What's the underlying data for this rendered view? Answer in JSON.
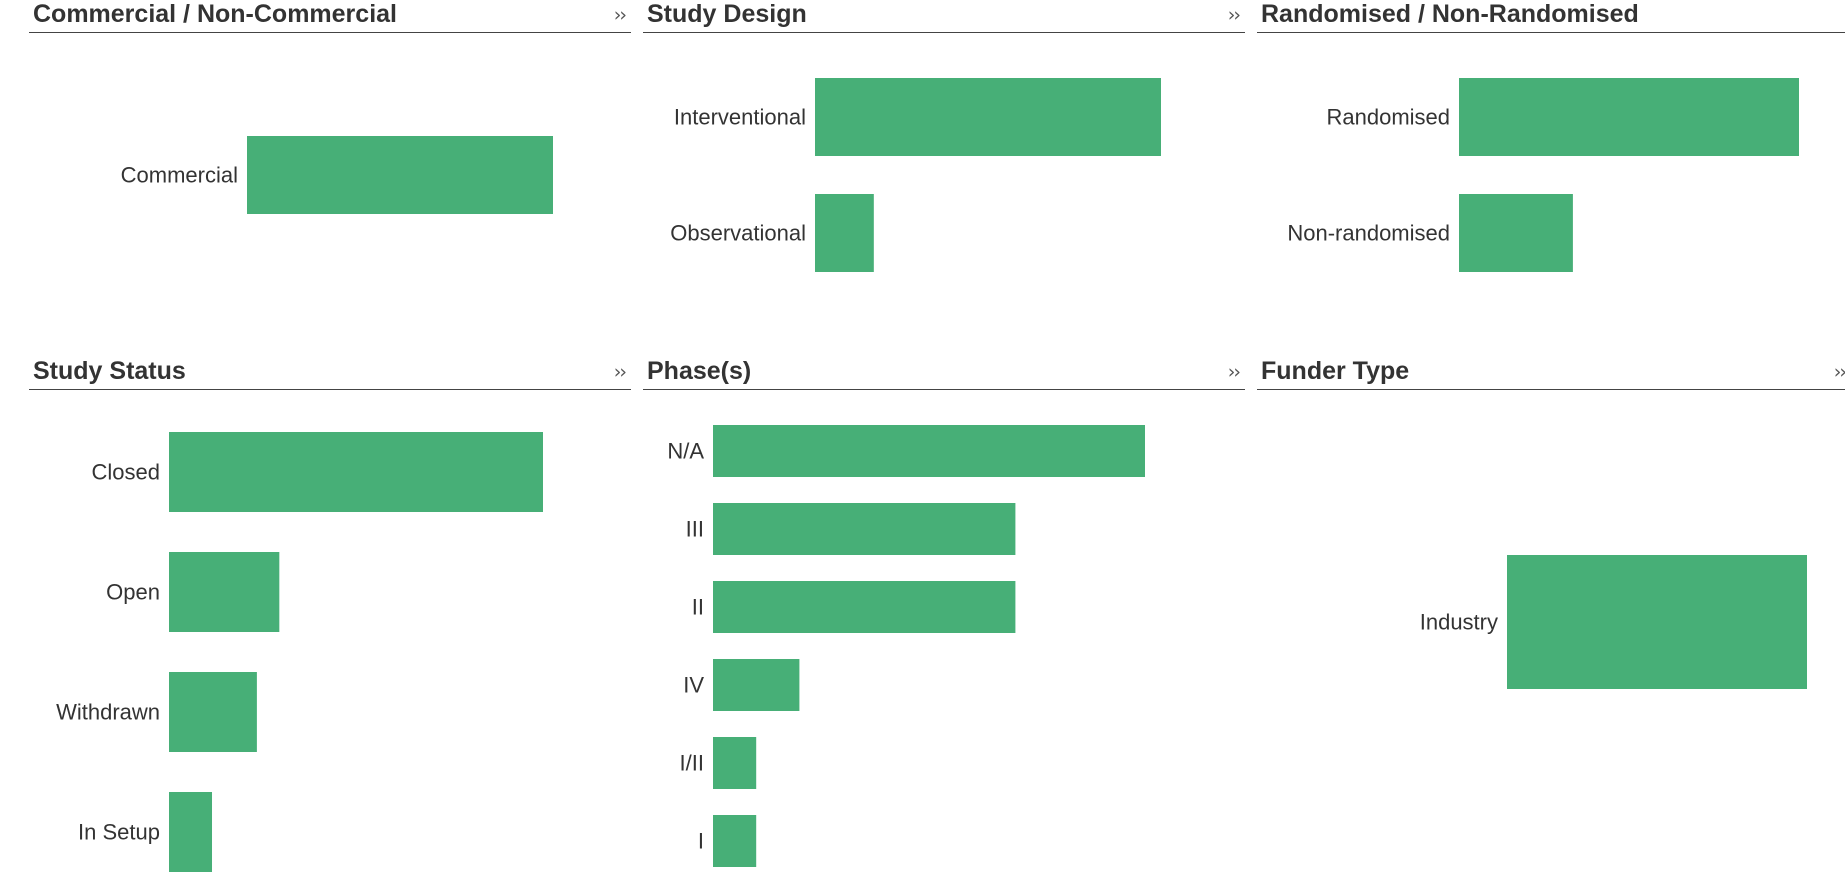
{
  "colors": {
    "bar": "#47af77",
    "title": "#333333",
    "rule": "#444444"
  },
  "icons": {
    "expand": "chevrons-right-icon"
  },
  "panels": [
    {
      "id": "commercial",
      "title": "Commercial / Non-Commercial",
      "expand_label": "››",
      "has_expand": true
    },
    {
      "id": "design",
      "title": "Study Design",
      "expand_label": "››",
      "has_expand": true
    },
    {
      "id": "randomised",
      "title": "Randomised / Non-Randomised",
      "expand_label": "››",
      "has_expand": false
    },
    {
      "id": "status",
      "title": "Study Status",
      "expand_label": "››",
      "has_expand": true
    },
    {
      "id": "phase",
      "title": "Phase(s)",
      "expand_label": "››",
      "has_expand": true
    },
    {
      "id": "funder",
      "title": "Funder Type",
      "expand_label": "››",
      "has_expand": true
    }
  ],
  "chart_data": [
    {
      "type": "bar",
      "orientation": "horizontal",
      "title": "Commercial / Non-Commercial",
      "categories": [
        "Commercial"
      ],
      "values": [
        1
      ],
      "xlim": [
        0,
        1
      ]
    },
    {
      "type": "bar",
      "orientation": "horizontal",
      "title": "Study Design",
      "categories": [
        "Interventional",
        "Observational"
      ],
      "values": [
        1,
        0.17
      ],
      "xlim": [
        0,
        1
      ]
    },
    {
      "type": "bar",
      "orientation": "horizontal",
      "title": "Randomised / Non-Randomised",
      "categories": [
        "Randomised",
        "Non-randomised"
      ],
      "values": [
        1,
        0.335
      ],
      "xlim": [
        0,
        1
      ]
    },
    {
      "type": "bar",
      "orientation": "horizontal",
      "title": "Study Status",
      "categories": [
        "Closed",
        "Open",
        "Withdrawn",
        "In Setup"
      ],
      "values": [
        1,
        0.295,
        0.235,
        0.115
      ],
      "xlim": [
        0,
        1
      ]
    },
    {
      "type": "bar",
      "orientation": "horizontal",
      "title": "Phase(s)",
      "categories": [
        "N/A",
        "III",
        "II",
        "IV",
        "I/II",
        "I"
      ],
      "values": [
        1,
        0.7,
        0.7,
        0.2,
        0.1,
        0.1
      ],
      "xlim": [
        0,
        1
      ]
    },
    {
      "type": "bar",
      "orientation": "horizontal",
      "title": "Funder Type",
      "categories": [
        "Industry"
      ],
      "values": [
        1
      ],
      "xlim": [
        0,
        1
      ]
    }
  ]
}
